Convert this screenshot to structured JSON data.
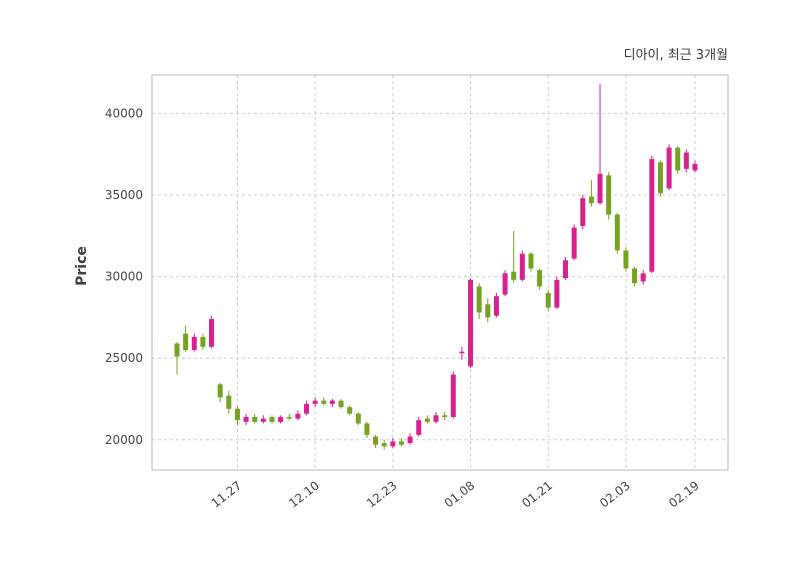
{
  "chart_data": {
    "type": "candlestick",
    "title": "디아이, 최근 3개월",
    "ylabel": "Price",
    "y_ticks": [
      20000,
      25000,
      30000,
      35000,
      40000
    ],
    "ylim": [
      18150,
      42350
    ],
    "grid": "dashed",
    "legend": "none",
    "x_ticks": [
      {
        "index": 7,
        "label": "11.27"
      },
      {
        "index": 16,
        "label": "12.10"
      },
      {
        "index": 25,
        "label": "12.23"
      },
      {
        "index": 34,
        "label": "01.08"
      },
      {
        "index": 43,
        "label": "01.21"
      },
      {
        "index": 52,
        "label": "02.03"
      },
      {
        "index": 60,
        "label": "02.19"
      }
    ],
    "colors": {
      "up": "#d6218f",
      "down": "#74a321",
      "grid": "#cdcdcd",
      "spine": "#bbbbbb",
      "text": "#454545"
    },
    "ohlc_format": [
      "open",
      "high",
      "low",
      "close"
    ],
    "candles": [
      [
        25900,
        26000,
        24000,
        25100
      ],
      [
        26500,
        27000,
        25400,
        25500
      ],
      [
        25500,
        26500,
        25400,
        26300
      ],
      [
        26300,
        26500,
        25500,
        25700
      ],
      [
        25700,
        27600,
        25600,
        27400
      ],
      [
        23400,
        23500,
        22300,
        22600
      ],
      [
        22700,
        23000,
        21600,
        21900
      ],
      [
        21900,
        22100,
        20900,
        21200
      ],
      [
        21100,
        21600,
        20900,
        21400
      ],
      [
        21400,
        21600,
        21000,
        21100
      ],
      [
        21100,
        21500,
        21000,
        21300
      ],
      [
        21400,
        21500,
        21000,
        21100
      ],
      [
        21100,
        21500,
        21000,
        21400
      ],
      [
        21400,
        21600,
        21200,
        21300
      ],
      [
        21300,
        21800,
        21200,
        21600
      ],
      [
        21600,
        22400,
        21500,
        22200
      ],
      [
        22200,
        22600,
        22000,
        22400
      ],
      [
        22400,
        22600,
        22100,
        22200
      ],
      [
        22200,
        22500,
        22000,
        22400
      ],
      [
        22400,
        22500,
        21900,
        22000
      ],
      [
        22000,
        22100,
        21500,
        21600
      ],
      [
        21600,
        21700,
        20900,
        21000
      ],
      [
        21000,
        21100,
        20100,
        20300
      ],
      [
        20200,
        20300,
        19500,
        19700
      ],
      [
        19800,
        20000,
        19400,
        19600
      ],
      [
        19600,
        20100,
        19500,
        19900
      ],
      [
        19900,
        20100,
        19600,
        19700
      ],
      [
        19800,
        20400,
        19700,
        20200
      ],
      [
        20300,
        21400,
        20200,
        21200
      ],
      [
        21300,
        21500,
        21000,
        21100
      ],
      [
        21100,
        21700,
        21000,
        21500
      ],
      [
        21500,
        21700,
        21200,
        21400
      ],
      [
        21400,
        24200,
        21300,
        24000
      ],
      [
        25300,
        25700,
        24900,
        25400
      ],
      [
        24500,
        29900,
        24400,
        29800
      ],
      [
        29400,
        29600,
        27400,
        27800
      ],
      [
        28300,
        28700,
        27200,
        27500
      ],
      [
        27600,
        29000,
        27500,
        28800
      ],
      [
        28900,
        30400,
        28800,
        30200
      ],
      [
        30300,
        32800,
        29600,
        29800
      ],
      [
        29800,
        31600,
        29700,
        31400
      ],
      [
        31400,
        31500,
        30300,
        30500
      ],
      [
        30400,
        30500,
        29200,
        29400
      ],
      [
        29000,
        29200,
        27900,
        28100
      ],
      [
        28100,
        30000,
        28000,
        29800
      ],
      [
        29900,
        31200,
        29800,
        31000
      ],
      [
        31100,
        33200,
        31000,
        33000
      ],
      [
        33100,
        35000,
        32900,
        34800
      ],
      [
        34900,
        35900,
        34300,
        34500
      ],
      [
        34500,
        41800,
        34400,
        36300
      ],
      [
        36200,
        36400,
        33500,
        33800
      ],
      [
        33800,
        33900,
        31400,
        31600
      ],
      [
        31600,
        31800,
        30300,
        30500
      ],
      [
        30500,
        30600,
        29400,
        29600
      ],
      [
        29700,
        30400,
        29500,
        30200
      ],
      [
        30300,
        37400,
        30200,
        37200
      ],
      [
        37000,
        37100,
        34900,
        35100
      ],
      [
        35400,
        38100,
        35300,
        37900
      ],
      [
        37900,
        38000,
        36300,
        36500
      ],
      [
        36600,
        37800,
        36400,
        37600
      ],
      [
        36500,
        37100,
        36400,
        36900
      ]
    ]
  }
}
